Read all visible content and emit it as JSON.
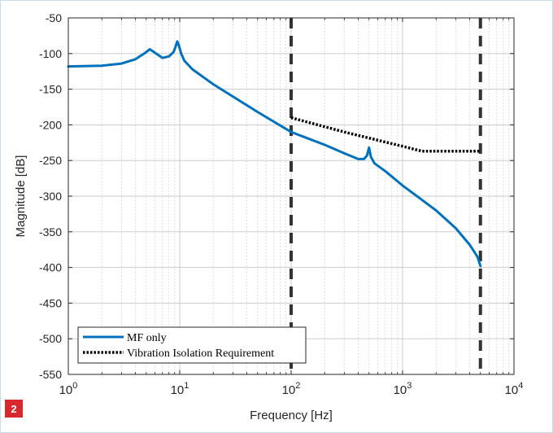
{
  "figure": {
    "badge": "2"
  },
  "chart_data": {
    "type": "line",
    "xlabel": "Frequency [Hz]",
    "ylabel": "Magnitude [dB]",
    "xscale": "log",
    "xlim": [
      1,
      10000
    ],
    "ylim": [
      -550,
      -50
    ],
    "x_ticks": [
      {
        "value": 1,
        "base": "10",
        "exp": "0"
      },
      {
        "value": 10,
        "base": "10",
        "exp": "1"
      },
      {
        "value": 100,
        "base": "10",
        "exp": "2"
      },
      {
        "value": 1000,
        "base": "10",
        "exp": "3"
      },
      {
        "value": 10000,
        "base": "10",
        "exp": "4"
      }
    ],
    "y_ticks": [
      {
        "value": -50,
        "label": "-50"
      },
      {
        "value": -100,
        "label": "-100"
      },
      {
        "value": -150,
        "label": "-150"
      },
      {
        "value": -200,
        "label": "-200"
      },
      {
        "value": -250,
        "label": "-250"
      },
      {
        "value": -300,
        "label": "-300"
      },
      {
        "value": -350,
        "label": "-350"
      },
      {
        "value": -400,
        "label": "-400"
      },
      {
        "value": -450,
        "label": "-450"
      },
      {
        "value": -500,
        "label": "-500"
      },
      {
        "value": -550,
        "label": "-550"
      }
    ],
    "grid": "on (major and minor)",
    "legend_position": "bottom-left",
    "series": [
      {
        "name": "MF only",
        "color": "#0072bd",
        "style": "solid",
        "x": [
          1,
          2,
          3,
          4,
          4.8,
          5.4,
          6,
          7,
          8,
          8.8,
          9.2,
          9.5,
          9.8,
          10.3,
          11,
          13,
          20,
          50,
          100,
          200,
          300,
          400,
          450,
          480,
          500,
          520,
          560,
          700,
          1000,
          2000,
          3000,
          4000,
          4700,
          5000
        ],
        "y": [
          -118,
          -117,
          -114,
          -108,
          -100,
          -94,
          -99,
          -106,
          -104,
          -98,
          -90,
          -83,
          -88,
          -100,
          -110,
          -122,
          -143,
          -182,
          -210,
          -228,
          -240,
          -248,
          -248,
          -243,
          -232,
          -245,
          -254,
          -265,
          -285,
          -320,
          -345,
          -368,
          -385,
          -398
        ]
      },
      {
        "name": "Vibration Isolation Requirement",
        "color": "#000000",
        "style": "dotted",
        "x": [
          100,
          300,
          1000,
          1500,
          5000
        ],
        "y": [
          -190,
          -210,
          -230,
          -237,
          -237
        ]
      }
    ],
    "vertical_lines": [
      {
        "x": 100,
        "color": "#333333",
        "style": "dashed"
      },
      {
        "x": 5000,
        "color": "#333333",
        "style": "dashed"
      }
    ]
  }
}
